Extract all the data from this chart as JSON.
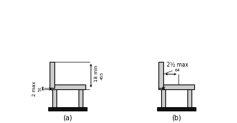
{
  "fig_width": 3.44,
  "fig_height": 1.79,
  "dpi": 100,
  "background_color": "#ffffff",
  "bench_color": "#cccccc",
  "bench_edge_color": "#000000",
  "label_a": "(a)",
  "label_b": "(b)",
  "annotation_2max": "2 max",
  "annotation_51": "51",
  "annotation_18min": "18 min",
  "annotation_455": "455",
  "annotation_2half_max": "2½ max",
  "annotation_64": "64"
}
